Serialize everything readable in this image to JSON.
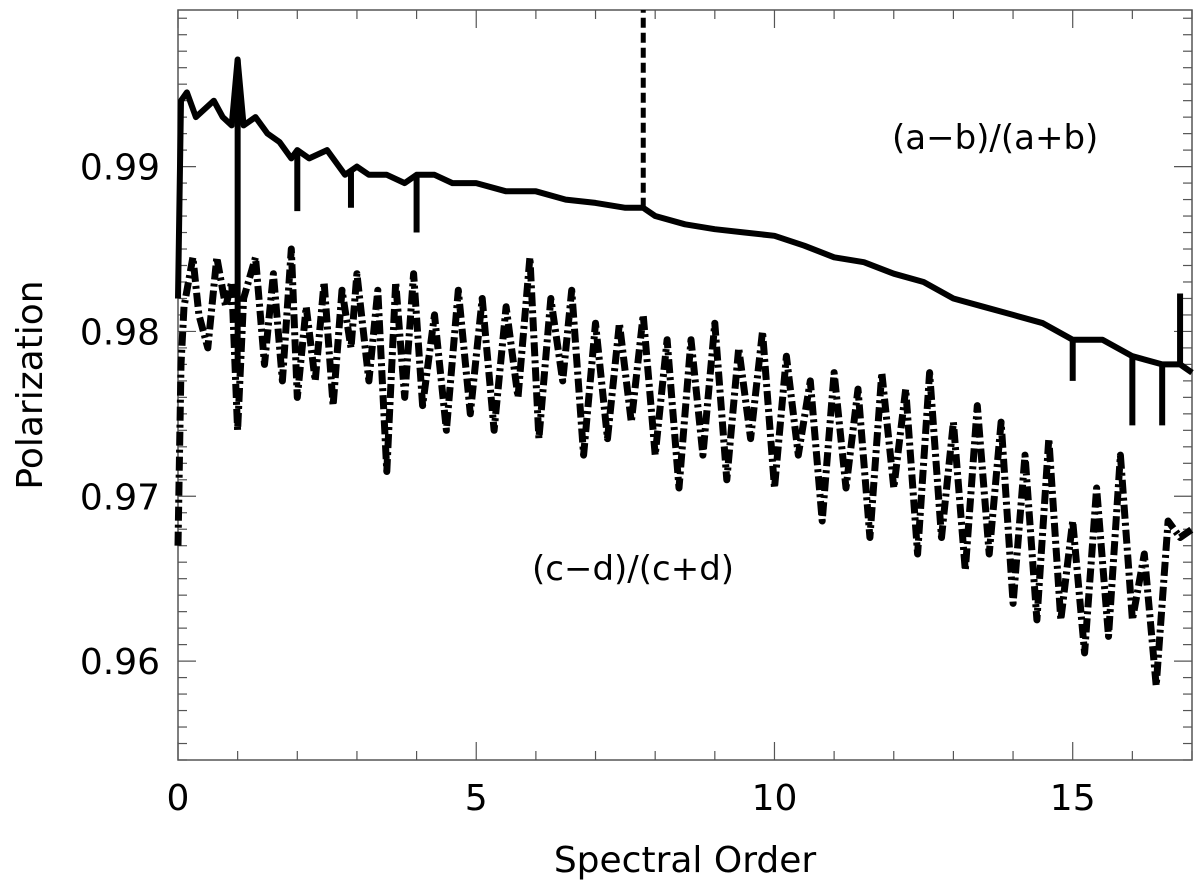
{
  "chart_data": {
    "type": "line",
    "xlabel": "Spectral Order",
    "ylabel": "Polarization",
    "xlim": [
      0,
      17
    ],
    "ylim": [
      0.954,
      0.9995
    ],
    "x_ticks": [
      0,
      5,
      10,
      15
    ],
    "y_ticks": [
      0.96,
      0.97,
      0.98,
      0.99
    ],
    "x_tick_labels": [
      "0",
      "5",
      "10",
      "15"
    ],
    "y_tick_labels": [
      "0.96",
      "0.97",
      "0.98",
      "0.99"
    ],
    "x_minor_step": 1,
    "y_minor_step": 0.001,
    "grid": false,
    "legend": "none",
    "annotations": [
      {
        "text": "(a−b)/(a+b)",
        "series": "a"
      },
      {
        "text": "(c−d)/(c+d)",
        "series": "c"
      }
    ],
    "series": [
      {
        "id": "ab",
        "style": "solid",
        "x": [
          0,
          0.05,
          0.15,
          0.3,
          0.45,
          0.6,
          0.75,
          0.9,
          1.0,
          1.1,
          1.3,
          1.5,
          1.7,
          1.9,
          2.0,
          2.2,
          2.5,
          2.8,
          3.0,
          3.2,
          3.5,
          3.8,
          4.0,
          4.3,
          4.6,
          5.0,
          5.5,
          6.0,
          6.5,
          7.0,
          7.5,
          7.8,
          8.0,
          8.5,
          9.0,
          9.5,
          10.0,
          10.5,
          11.0,
          11.5,
          12.0,
          12.5,
          13.0,
          13.5,
          14.0,
          14.5,
          15.0,
          15.5,
          16.0,
          16.5,
          16.8,
          17.0
        ],
        "y": [
          0.982,
          0.994,
          0.9945,
          0.993,
          0.9935,
          0.994,
          0.993,
          0.9925,
          0.9965,
          0.9925,
          0.993,
          0.992,
          0.9915,
          0.9905,
          0.991,
          0.9905,
          0.991,
          0.9895,
          0.99,
          0.9895,
          0.9895,
          0.989,
          0.9895,
          0.9895,
          0.989,
          0.989,
          0.9885,
          0.9885,
          0.988,
          0.9878,
          0.9875,
          0.9875,
          0.987,
          0.9865,
          0.9862,
          0.986,
          0.9858,
          0.9852,
          0.9845,
          0.9842,
          0.9835,
          0.983,
          0.982,
          0.9815,
          0.981,
          0.9805,
          0.9795,
          0.9795,
          0.9785,
          0.978,
          0.978,
          0.9775
        ],
        "spikes": [
          {
            "x": 1.0,
            "y": 0.9775
          },
          {
            "x": 2.0,
            "y": 0.9873
          },
          {
            "x": 2.9,
            "y": 0.9875
          },
          {
            "x": 4.0,
            "y": 0.986
          },
          {
            "x": 7.8,
            "y": 0.9995
          },
          {
            "x": 15.0,
            "y": 0.977
          },
          {
            "x": 16.0,
            "y": 0.9743
          },
          {
            "x": 16.5,
            "y": 0.9743
          },
          {
            "x": 16.8,
            "y": 0.9823
          }
        ]
      },
      {
        "id": "cd",
        "style": "dash-dot",
        "x": [
          0,
          0.05,
          0.1,
          0.25,
          0.35,
          0.5,
          0.65,
          0.8,
          0.9,
          1.0,
          1.1,
          1.3,
          1.45,
          1.6,
          1.75,
          1.9,
          2.0,
          2.15,
          2.3,
          2.45,
          2.6,
          2.75,
          2.9,
          3.0,
          3.2,
          3.35,
          3.5,
          3.65,
          3.8,
          3.95,
          4.1,
          4.3,
          4.5,
          4.7,
          4.9,
          5.1,
          5.3,
          5.5,
          5.7,
          5.9,
          6.05,
          6.25,
          6.45,
          6.6,
          6.8,
          7.0,
          7.2,
          7.4,
          7.6,
          7.8,
          8.0,
          8.2,
          8.4,
          8.6,
          8.8,
          9.0,
          9.2,
          9.4,
          9.6,
          9.8,
          10.0,
          10.2,
          10.4,
          10.6,
          10.8,
          11.0,
          11.2,
          11.4,
          11.6,
          11.8,
          12.0,
          12.2,
          12.4,
          12.6,
          12.8,
          13.0,
          13.2,
          13.4,
          13.6,
          13.8,
          14.0,
          14.2,
          14.4,
          14.6,
          14.8,
          15.0,
          15.2,
          15.4,
          15.6,
          15.8,
          16.0,
          16.2,
          16.4,
          16.6,
          16.8,
          17.0
        ],
        "y": [
          0.967,
          0.978,
          0.9815,
          0.9845,
          0.981,
          0.979,
          0.9845,
          0.9815,
          0.983,
          0.974,
          0.982,
          0.9845,
          0.978,
          0.9835,
          0.977,
          0.985,
          0.976,
          0.9815,
          0.977,
          0.983,
          0.9755,
          0.9825,
          0.979,
          0.9835,
          0.977,
          0.9825,
          0.9715,
          0.983,
          0.976,
          0.9835,
          0.9755,
          0.981,
          0.974,
          0.9825,
          0.975,
          0.982,
          0.974,
          0.9815,
          0.976,
          0.9845,
          0.9735,
          0.982,
          0.977,
          0.9825,
          0.9725,
          0.9805,
          0.9735,
          0.9805,
          0.9745,
          0.981,
          0.9725,
          0.9795,
          0.9705,
          0.9795,
          0.9725,
          0.9805,
          0.971,
          0.979,
          0.9735,
          0.98,
          0.9705,
          0.9785,
          0.9725,
          0.977,
          0.9685,
          0.9775,
          0.9705,
          0.9765,
          0.9675,
          0.9775,
          0.9705,
          0.9765,
          0.9665,
          0.9775,
          0.9675,
          0.9745,
          0.9655,
          0.9755,
          0.9665,
          0.9745,
          0.9635,
          0.9725,
          0.9625,
          0.9735,
          0.9625,
          0.9685,
          0.9605,
          0.9705,
          0.9615,
          0.9725,
          0.9625,
          0.9665,
          0.9585,
          0.9685,
          0.9675,
          0.968
        ]
      }
    ]
  }
}
